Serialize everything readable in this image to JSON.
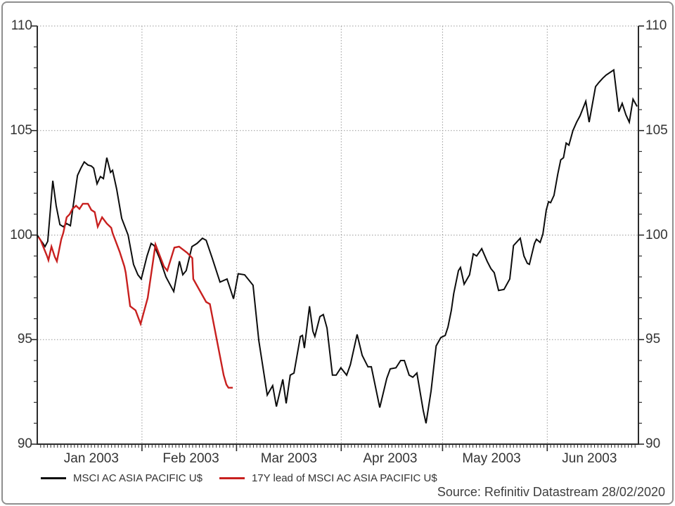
{
  "source": {
    "text": "Source: Refinitiv Datastream 28/02/2020"
  },
  "chart_data": {
    "type": "line",
    "title": "",
    "grid_style": "dotted",
    "legend_position": "bottom-left",
    "x_axis": {
      "unit": "days since 01 Jan 2003",
      "range": [
        0,
        178
      ],
      "minor_tick_every_days": 1,
      "month_boundaries_days": [
        31,
        59,
        90,
        120,
        151
      ],
      "month_ticks": [
        {
          "label": "Jan 2003",
          "center_day": 16
        },
        {
          "label": "Feb 2003",
          "center_day": 45.5
        },
        {
          "label": "Mar 2003",
          "center_day": 74.5
        },
        {
          "label": "Apr 2003",
          "center_day": 104.5
        },
        {
          "label": "May 2003",
          "center_day": 134.5
        },
        {
          "label": "Jun 2003",
          "center_day": 163.5
        }
      ]
    },
    "y_axis": {
      "range": [
        90,
        110
      ],
      "major_ticks": [
        90,
        95,
        100,
        105,
        110
      ],
      "minor_step": 1,
      "gridline_values": [
        95,
        100,
        105,
        110
      ]
    },
    "series": [
      {
        "name": "MSCI AC ASIA PACIFIC U$",
        "color": "#0c0c0c",
        "width": 2,
        "points": [
          [
            0,
            100
          ],
          [
            0.8,
            99.8
          ],
          [
            1.7,
            99.6
          ],
          [
            2.3,
            99.45
          ],
          [
            3.1,
            99.7
          ],
          [
            4.6,
            102.6
          ],
          [
            5.6,
            101.4
          ],
          [
            6.7,
            100.5
          ],
          [
            7.7,
            100.4
          ],
          [
            8.7,
            100.55
          ],
          [
            9.8,
            100.45
          ],
          [
            11.9,
            102.85
          ],
          [
            12.9,
            103.2
          ],
          [
            13.9,
            103.5
          ],
          [
            15,
            103.35
          ],
          [
            16,
            103.3
          ],
          [
            16.7,
            103.2
          ],
          [
            17.7,
            102.45
          ],
          [
            18.7,
            102.8
          ],
          [
            19.6,
            102.7
          ],
          [
            20.6,
            103.7
          ],
          [
            21.7,
            103
          ],
          [
            22.3,
            103.1
          ],
          [
            23.5,
            102.2
          ],
          [
            25,
            100.8
          ],
          [
            26.9,
            100
          ],
          [
            28.5,
            98.6
          ],
          [
            29.8,
            98.1
          ],
          [
            30.8,
            97.9
          ],
          [
            32.5,
            99
          ],
          [
            33.7,
            99.6
          ],
          [
            34.6,
            99.5
          ],
          [
            36.2,
            98.9
          ],
          [
            38.1,
            98
          ],
          [
            40.4,
            97.3
          ],
          [
            42.1,
            98.75
          ],
          [
            43.1,
            98.1
          ],
          [
            44.1,
            98.3
          ],
          [
            45.8,
            99.45
          ],
          [
            47.3,
            99.6
          ],
          [
            48.9,
            99.85
          ],
          [
            50,
            99.75
          ],
          [
            51.8,
            98.9
          ],
          [
            54.1,
            97.75
          ],
          [
            56.2,
            97.9
          ],
          [
            58.1,
            96.95
          ],
          [
            59.5,
            98.15
          ],
          [
            61.4,
            98.1
          ],
          [
            63.9,
            97.6
          ],
          [
            65.6,
            94.95
          ],
          [
            68.1,
            92.35
          ],
          [
            69.7,
            92.8
          ],
          [
            70.8,
            91.8
          ],
          [
            72.7,
            93.1
          ],
          [
            73.7,
            91.95
          ],
          [
            74.9,
            93.3
          ],
          [
            76,
            93.4
          ],
          [
            77.9,
            95.15
          ],
          [
            78.5,
            95.2
          ],
          [
            79.1,
            94.6
          ],
          [
            80.6,
            96.6
          ],
          [
            81.6,
            95.4
          ],
          [
            82.2,
            95.15
          ],
          [
            83.7,
            96.1
          ],
          [
            84.7,
            96.2
          ],
          [
            85.8,
            95.55
          ],
          [
            87.4,
            93.3
          ],
          [
            88.5,
            93.3
          ],
          [
            89.9,
            93.65
          ],
          [
            91.6,
            93.3
          ],
          [
            92.7,
            93.8
          ],
          [
            94.7,
            95.25
          ],
          [
            96.2,
            94.25
          ],
          [
            97.9,
            93.7
          ],
          [
            98.9,
            93.7
          ],
          [
            101.4,
            91.75
          ],
          [
            103.5,
            93.15
          ],
          [
            104.5,
            93.6
          ],
          [
            106.2,
            93.65
          ],
          [
            107.6,
            94
          ],
          [
            108.7,
            94
          ],
          [
            110.1,
            93.3
          ],
          [
            111.2,
            93.2
          ],
          [
            112.4,
            93.4
          ],
          [
            114.3,
            91.6
          ],
          [
            115.1,
            91
          ],
          [
            116.6,
            92.55
          ],
          [
            118.1,
            94.7
          ],
          [
            119.5,
            95.1
          ],
          [
            120.8,
            95.2
          ],
          [
            121.6,
            95.6
          ],
          [
            122.6,
            96.4
          ],
          [
            123.3,
            97.2
          ],
          [
            124.7,
            98.3
          ],
          [
            125.3,
            98.45
          ],
          [
            126.4,
            97.65
          ],
          [
            128,
            98.1
          ],
          [
            129.1,
            99.1
          ],
          [
            130.1,
            99
          ],
          [
            131.6,
            99.35
          ],
          [
            133.2,
            98.75
          ],
          [
            134.3,
            98.4
          ],
          [
            135.3,
            98.2
          ],
          [
            136.6,
            97.35
          ],
          [
            138.2,
            97.4
          ],
          [
            139.9,
            97.9
          ],
          [
            141,
            99.5
          ],
          [
            143,
            99.85
          ],
          [
            144.1,
            99
          ],
          [
            145.1,
            98.65
          ],
          [
            145.7,
            98.6
          ],
          [
            147.2,
            99.6
          ],
          [
            147.8,
            99.8
          ],
          [
            148.9,
            99.65
          ],
          [
            149.7,
            100.05
          ],
          [
            150.7,
            101.2
          ],
          [
            151.4,
            101.6
          ],
          [
            152,
            101.55
          ],
          [
            153,
            101.9
          ],
          [
            154.1,
            102.9
          ],
          [
            155,
            103.6
          ],
          [
            155.8,
            103.7
          ],
          [
            156.6,
            104.4
          ],
          [
            157.4,
            104.3
          ],
          [
            158.6,
            105
          ],
          [
            159.7,
            105.4
          ],
          [
            160.7,
            105.7
          ],
          [
            162.4,
            106.4
          ],
          [
            163.4,
            105.4
          ],
          [
            165.3,
            107.1
          ],
          [
            166.3,
            107.3
          ],
          [
            167.4,
            107.5
          ],
          [
            168.4,
            107.65
          ],
          [
            170.7,
            107.9
          ],
          [
            172.2,
            105.9
          ],
          [
            173.2,
            106.3
          ],
          [
            174.3,
            105.75
          ],
          [
            175.3,
            105.4
          ],
          [
            176.4,
            106.5
          ],
          [
            177.6,
            106.15
          ]
        ]
      },
      {
        "name": "17Y lead of MSCI AC ASIA PACIFIC U$",
        "color": "#c8201f",
        "width": 2.4,
        "points": [
          [
            0.4,
            99.9
          ],
          [
            1,
            99.75
          ],
          [
            2.9,
            99
          ],
          [
            3.3,
            98.8
          ],
          [
            4.2,
            99.45
          ],
          [
            5.2,
            98.95
          ],
          [
            5.8,
            98.75
          ],
          [
            7.1,
            99.8
          ],
          [
            7.7,
            100.1
          ],
          [
            8.7,
            100.85
          ],
          [
            9.6,
            101
          ],
          [
            10.4,
            101.25
          ],
          [
            11.5,
            101.4
          ],
          [
            12.5,
            101.25
          ],
          [
            13.5,
            101.5
          ],
          [
            15,
            101.5
          ],
          [
            16,
            101.2
          ],
          [
            17,
            101.1
          ],
          [
            17.9,
            100.4
          ],
          [
            19.2,
            100.85
          ],
          [
            20.6,
            100.55
          ],
          [
            21.9,
            100.35
          ],
          [
            22.3,
            100.1
          ],
          [
            24.4,
            99.2
          ],
          [
            25.8,
            98.5
          ],
          [
            26.2,
            98.2
          ],
          [
            27.5,
            96.6
          ],
          [
            29.1,
            96.4
          ],
          [
            30.6,
            95.75
          ],
          [
            32.7,
            97
          ],
          [
            35,
            99.55
          ],
          [
            36.3,
            99
          ],
          [
            37.5,
            98.5
          ],
          [
            38.5,
            98.3
          ],
          [
            40.6,
            99.4
          ],
          [
            42,
            99.45
          ],
          [
            44.4,
            99.15
          ],
          [
            45.9,
            98.9
          ],
          [
            46.2,
            97.9
          ],
          [
            50,
            96.8
          ],
          [
            51.1,
            96.7
          ],
          [
            55.2,
            93.3
          ],
          [
            56,
            92.85
          ],
          [
            56.6,
            92.7
          ],
          [
            57.9,
            92.7
          ]
        ]
      }
    ],
    "style": {
      "axis_color": "#2b2b2b",
      "grid_color": "#999999",
      "label_color": "#333333",
      "frame_color": "#8f8f8f"
    }
  }
}
